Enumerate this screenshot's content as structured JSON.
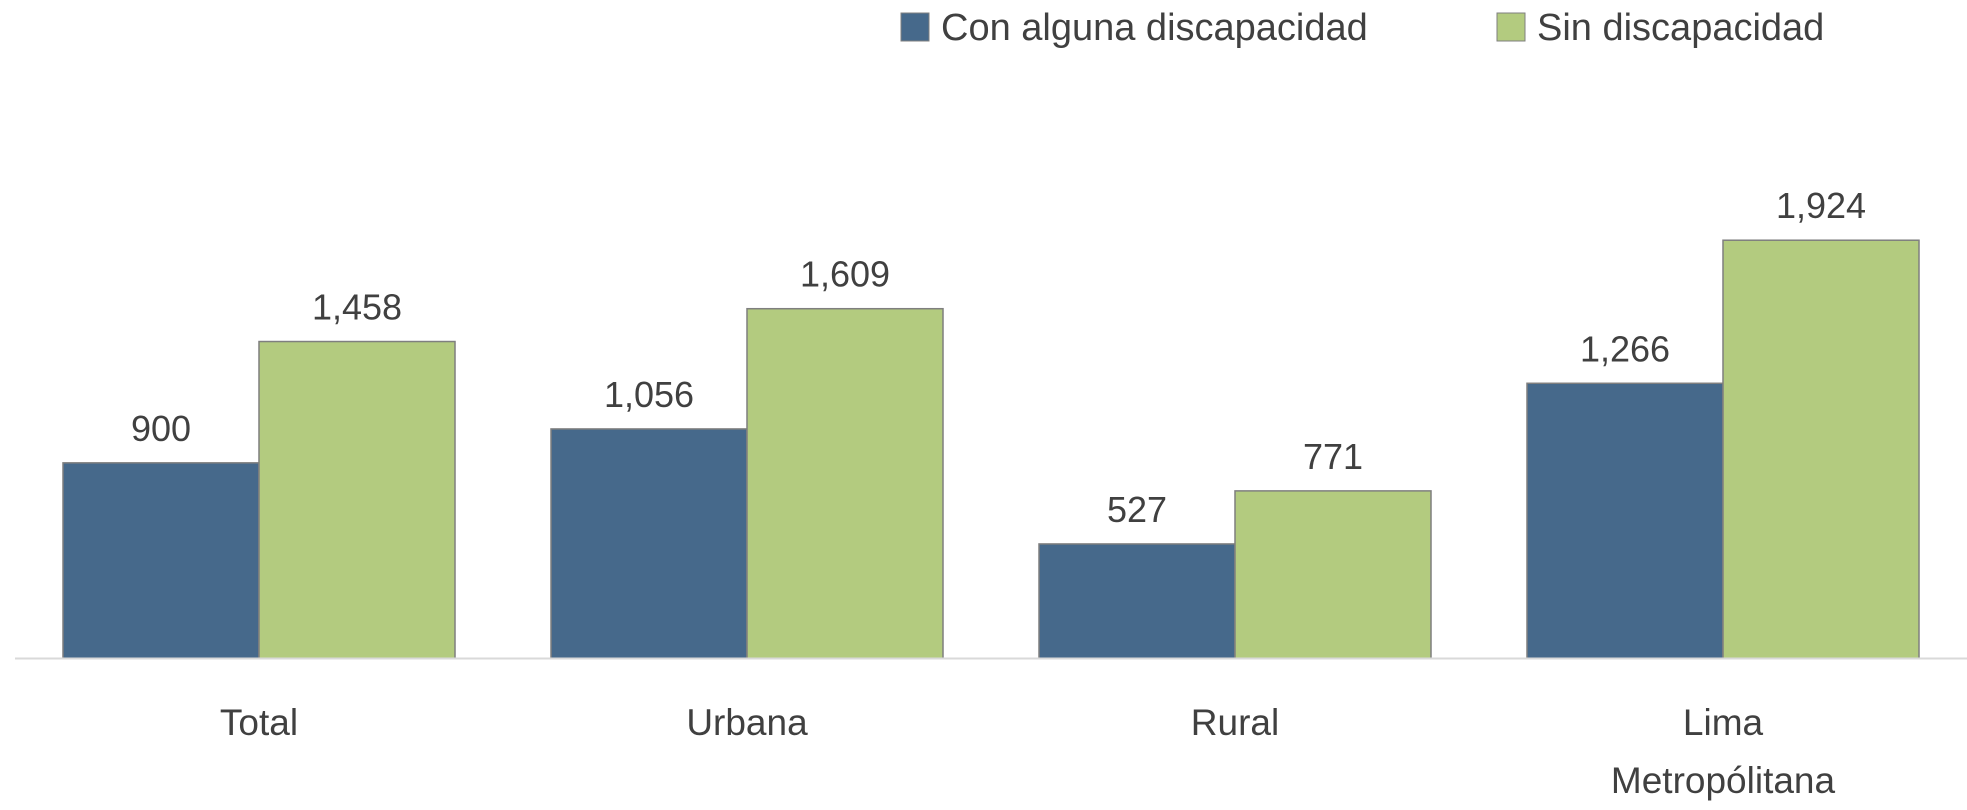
{
  "chart_data": {
    "type": "bar",
    "categories": [
      "Total",
      "Urbana",
      "Rural",
      "Lima Metropólitana"
    ],
    "series": [
      {
        "name": "Con alguna discapacidad",
        "color": "#46698b",
        "values": [
          900,
          1056,
          527,
          1266
        ],
        "value_labels": [
          "900",
          "1,056",
          "527",
          "1,266"
        ]
      },
      {
        "name": "Sin discapacidad",
        "color": "#b3cb7f",
        "values": [
          1458,
          1609,
          771,
          1924
        ],
        "value_labels": [
          "1,458",
          "1,609",
          "771",
          "1,924"
        ]
      }
    ],
    "ylim": [
      0,
      2500
    ],
    "legend": "top-right"
  }
}
